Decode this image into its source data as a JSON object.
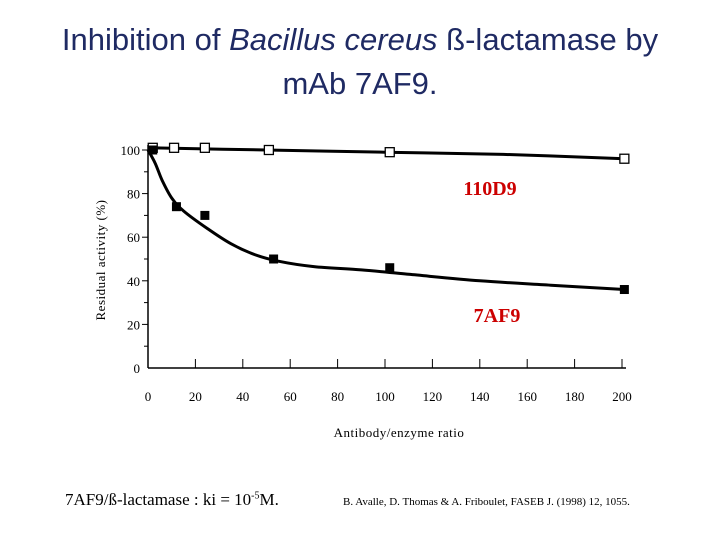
{
  "slide": {
    "title_prefix": "Inhibition of ",
    "title_italic": "Bacillus cereus",
    "title_suffix": " ß-lactamase by",
    "title_line2": "mAb 7AF9.",
    "note_left_prefix": "7AF9/ß-lactamase : ki = 10",
    "note_left_exp": "-5",
    "note_left_suffix": "M.",
    "citation": "B. Avalle, D. Thomas & A. Friboulet, FASEB J. (1998) 12, 1055."
  },
  "chart_data": {
    "type": "line",
    "xlabel": "Antibody/enzyme ratio",
    "ylabel": "Residual activity (%)",
    "xlim": [
      0,
      200
    ],
    "ylim": [
      0,
      100
    ],
    "x_ticks": [
      0,
      20,
      40,
      60,
      80,
      100,
      120,
      140,
      160,
      180,
      200
    ],
    "x_tick_labels": [
      "0",
      "20",
      "40",
      "60",
      "80",
      "100",
      "120",
      "140",
      "160",
      "180",
      "200"
    ],
    "y_ticks": [
      0,
      20,
      40,
      60,
      80,
      100
    ],
    "y_tick_labels": [
      "0",
      "20",
      "40",
      "60",
      "80",
      "100"
    ],
    "series": [
      {
        "name": "110D9",
        "marker": "open-square",
        "color": "#000000",
        "label_color": "#cc0000",
        "points": [
          [
            2,
            101
          ],
          [
            11,
            101
          ],
          [
            24,
            101
          ],
          [
            51,
            100
          ],
          [
            102,
            99
          ],
          [
            201,
            96
          ]
        ],
        "curve": [
          [
            0,
            101
          ],
          [
            50,
            100
          ],
          [
            100,
            99
          ],
          [
            150,
            98
          ],
          [
            201,
            96
          ]
        ]
      },
      {
        "name": "7AF9",
        "marker": "filled-square",
        "color": "#000000",
        "label_color": "#cc0000",
        "points": [
          [
            2,
            100
          ],
          [
            12,
            74
          ],
          [
            24,
            70
          ],
          [
            53,
            50
          ],
          [
            102,
            46
          ],
          [
            201,
            36
          ]
        ],
        "curve": [
          [
            0,
            100
          ],
          [
            3,
            94
          ],
          [
            6,
            86
          ],
          [
            10,
            78
          ],
          [
            15,
            72
          ],
          [
            25,
            64
          ],
          [
            35,
            57
          ],
          [
            45,
            52
          ],
          [
            55,
            49
          ],
          [
            70,
            46.5
          ],
          [
            90,
            45
          ],
          [
            110,
            43
          ],
          [
            140,
            40
          ],
          [
            170,
            38
          ],
          [
            201,
            36
          ]
        ]
      }
    ]
  }
}
